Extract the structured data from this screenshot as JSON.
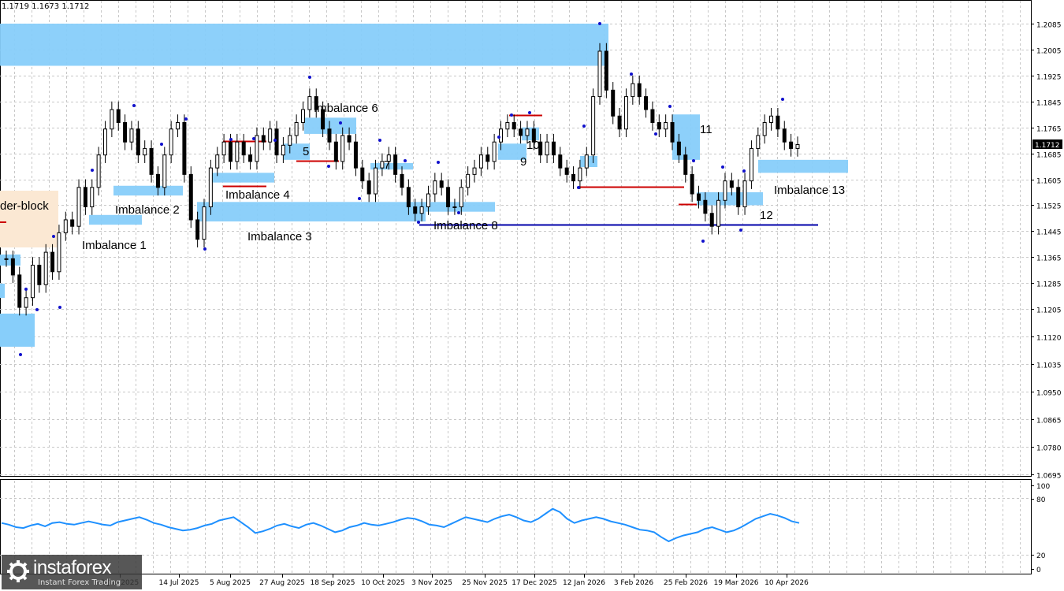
{
  "header": {
    "ohlc": "1.1719 1.1673 1.1712"
  },
  "current_price_label": "1.1712",
  "logo": {
    "brand": "instaforex",
    "tagline": "Instant Forex Trading"
  },
  "price_axis": {
    "ticks": [
      "1.2085",
      "1.2005",
      "1.1925",
      "1.1845",
      "1.1765",
      "1.1685",
      "1.1605",
      "1.1525",
      "1.1445",
      "1.1365",
      "1.1285",
      "1.1205",
      "1.1120",
      "1.1035",
      "1.0950",
      "1.0865",
      "1.0780",
      "1.0695"
    ],
    "min": 1.0695,
    "max": 1.2085
  },
  "indicator_axis": {
    "ticks": [
      "100",
      "80",
      "20",
      "0"
    ]
  },
  "time_axis": {
    "labels": [
      "2 Jun 2025",
      "14 Jul 2025",
      "5 Aug 2025",
      "27 Aug 2025",
      "18 Sep 2025",
      "10 Oct 2025",
      "3 Nov 2025",
      "25 Nov 2025",
      "17 Dec 2025",
      "12 Jan 2026",
      "3 Feb 2026",
      "25 Feb 2026",
      "19 Mar 2026",
      "10 Apr 2026"
    ]
  },
  "annotations": {
    "order_block": "der-block",
    "imb1": "Imbalance 1",
    "imb2": "Imbalance 2",
    "imb3": "Imbalance 3",
    "imb4": "Imbalance 4",
    "imb5": "5",
    "imb6": "Imbalance 6",
    "imb7": "7",
    "imb8": "Imbalance 8",
    "imb9": "9",
    "imb10": "10",
    "imb11": "11",
    "imb12": "12",
    "imb13": "Imbalance 13"
  },
  "colors": {
    "zone": "#87CEFA",
    "order_block": "#FBE8D3",
    "candle": "#000000",
    "fractal": "#1010CC",
    "red_line": "#CC0000",
    "blue_line": "#0000AA",
    "rsi": "#1E90FF",
    "grid": "#C8C8C8"
  },
  "chart_data": {
    "type": "line",
    "title": "",
    "xlabel": "",
    "ylabel": "",
    "ylim": [
      1.0695,
      1.2085
    ],
    "series": [
      {
        "values": [
          1.136,
          1.131,
          1.121,
          1.124,
          1.134,
          1.128,
          1.138,
          1.132,
          1.144,
          1.148,
          1.146,
          1.158,
          1.152,
          1.158,
          1.168,
          1.176,
          1.182,
          1.178,
          1.172,
          1.176,
          1.168,
          1.17,
          1.162,
          1.158,
          1.168,
          1.176,
          1.178,
          1.162,
          1.148,
          1.142,
          1.152,
          1.164,
          1.168,
          1.172,
          1.166,
          1.172,
          1.168,
          1.166,
          1.174,
          1.172,
          1.176,
          1.168,
          1.171,
          1.174,
          1.178,
          1.182,
          1.186,
          1.182,
          1.176,
          1.172,
          1.166,
          1.174,
          1.172,
          1.164,
          1.16,
          1.156,
          1.164,
          1.166,
          1.168,
          1.162,
          1.158,
          1.152,
          1.15,
          1.152,
          1.156,
          1.16,
          1.158,
          1.152,
          1.152,
          1.158,
          1.162,
          1.164,
          1.168,
          1.166,
          1.172,
          1.176,
          1.178,
          1.176,
          1.174,
          1.176,
          1.172,
          1.168,
          1.172,
          1.168,
          1.164,
          1.162,
          1.16,
          1.164,
          1.168,
          1.186,
          1.2,
          1.188,
          1.18,
          1.176,
          1.186,
          1.19,
          1.186,
          1.182,
          1.178,
          1.176,
          1.178,
          1.172,
          1.168,
          1.162,
          1.156,
          1.154,
          1.15,
          1.146,
          1.154,
          1.16,
          1.158,
          1.152,
          1.16,
          1.17,
          1.174,
          1.178,
          1.18,
          1.176,
          1.172,
          1.17,
          1.1712
        ]
      }
    ]
  },
  "indicator": {
    "range": [
      0,
      100
    ],
    "values": [
      55,
      53,
      50,
      49,
      52,
      54,
      51,
      55,
      56,
      54,
      53,
      55,
      57,
      55,
      53,
      52,
      56,
      58,
      60,
      62,
      59,
      55,
      53,
      50,
      48,
      46,
      47,
      49,
      52,
      54,
      58,
      60,
      62,
      56,
      50,
      43,
      45,
      48,
      52,
      54,
      51,
      49,
      53,
      55,
      52,
      48,
      44,
      46,
      50,
      52,
      55,
      53,
      52,
      54,
      56,
      59,
      61,
      60,
      57,
      53,
      52,
      50,
      54,
      58,
      62,
      60,
      58,
      56,
      60,
      63,
      65,
      62,
      58,
      56,
      60,
      66,
      72,
      68,
      60,
      55,
      58,
      60,
      62,
      60,
      57,
      55,
      53,
      50,
      47,
      46,
      44,
      38,
      33,
      37,
      40,
      42,
      44,
      48,
      50,
      47,
      44,
      46,
      50,
      55,
      60,
      63,
      66,
      64,
      61,
      57,
      55
    ]
  },
  "zones": [
    {
      "label_key": null,
      "price_top": 1.2085,
      "price_bottom": 1.1955
    },
    {
      "label_key": "imb1",
      "price_top": 1.1495,
      "price_bottom": 1.1465
    },
    {
      "label_key": "imb2",
      "price_top": 1.1585,
      "price_bottom": 1.1555
    },
    {
      "label_key": "imb3",
      "price_top": 1.1535,
      "price_bottom": 1.1475
    },
    {
      "label_key": "imb4",
      "price_top": 1.1625,
      "price_bottom": 1.1595
    },
    {
      "label_key": "imb5",
      "price_top": 1.1715,
      "price_bottom": 1.1665
    },
    {
      "label_key": "imb6",
      "price_top": 1.1795,
      "price_bottom": 1.1745
    },
    {
      "label_key": "imb7",
      "price_top": 1.1655,
      "price_bottom": 1.1635
    },
    {
      "label_key": "imb8",
      "price_top": 1.1535,
      "price_bottom": 1.1505
    },
    {
      "label_key": "imb9",
      "price_top": 1.1715,
      "price_bottom": 1.1665
    },
    {
      "label_key": "imb10",
      "price_top": 1.1765,
      "price_bottom": 1.1725
    },
    {
      "label_key": "imb11",
      "price_top": 1.1805,
      "price_bottom": 1.1665
    },
    {
      "label_key": "imb12",
      "price_top": 1.1565,
      "price_bottom": 1.1525
    },
    {
      "label_key": "imb13",
      "price_top": 1.1665,
      "price_bottom": 1.1625
    }
  ]
}
